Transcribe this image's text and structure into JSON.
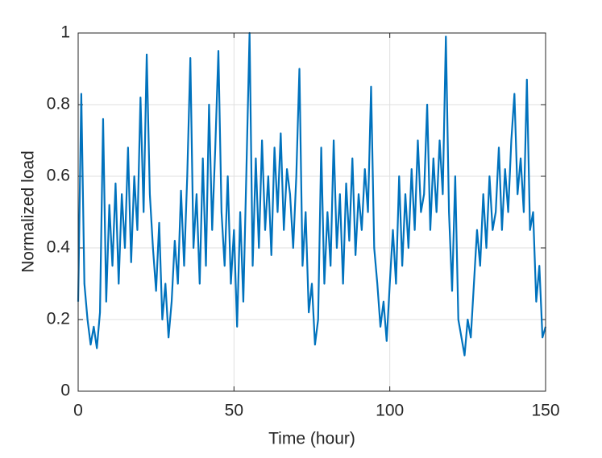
{
  "chart_data": {
    "type": "line",
    "x_label": "Time (hour)",
    "y_label": "Normalized load",
    "x": [
      0,
      1,
      2,
      3,
      4,
      5,
      6,
      7,
      8,
      9,
      10,
      11,
      12,
      13,
      14,
      15,
      16,
      17,
      18,
      19,
      20,
      21,
      22,
      23,
      24,
      25,
      26,
      27,
      28,
      29,
      30,
      31,
      32,
      33,
      34,
      35,
      36,
      37,
      38,
      39,
      40,
      41,
      42,
      43,
      44,
      45,
      46,
      47,
      48,
      49,
      50,
      51,
      52,
      53,
      54,
      55,
      56,
      57,
      58,
      59,
      60,
      61,
      62,
      63,
      64,
      65,
      66,
      67,
      68,
      69,
      70,
      71,
      72,
      73,
      74,
      75,
      76,
      77,
      78,
      79,
      80,
      81,
      82,
      83,
      84,
      85,
      86,
      87,
      88,
      89,
      90,
      91,
      92,
      93,
      94,
      95,
      96,
      97,
      98,
      99,
      100,
      101,
      102,
      103,
      104,
      105,
      106,
      107,
      108,
      109,
      110,
      111,
      112,
      113,
      114,
      115,
      116,
      117,
      118,
      119,
      120,
      121,
      122,
      123,
      124,
      125,
      126,
      127,
      128,
      129,
      130,
      131,
      132,
      133,
      134,
      135,
      136,
      137,
      138,
      139,
      140,
      141,
      142,
      143,
      144,
      145,
      146,
      147,
      148,
      149,
      150
    ],
    "series": [
      {
        "name": "Normalized load",
        "color": "#0072bd",
        "values": [
          0.25,
          0.83,
          0.3,
          0.2,
          0.13,
          0.18,
          0.12,
          0.22,
          0.76,
          0.25,
          0.52,
          0.35,
          0.58,
          0.3,
          0.55,
          0.4,
          0.68,
          0.36,
          0.6,
          0.45,
          0.82,
          0.5,
          0.94,
          0.55,
          0.4,
          0.28,
          0.47,
          0.2,
          0.3,
          0.15,
          0.25,
          0.42,
          0.3,
          0.56,
          0.35,
          0.6,
          0.93,
          0.4,
          0.55,
          0.3,
          0.65,
          0.35,
          0.8,
          0.45,
          0.68,
          0.95,
          0.5,
          0.35,
          0.6,
          0.3,
          0.45,
          0.18,
          0.5,
          0.25,
          0.62,
          1.0,
          0.35,
          0.65,
          0.4,
          0.7,
          0.45,
          0.6,
          0.38,
          0.68,
          0.5,
          0.72,
          0.45,
          0.62,
          0.55,
          0.4,
          0.6,
          0.9,
          0.35,
          0.5,
          0.22,
          0.3,
          0.13,
          0.2,
          0.68,
          0.3,
          0.5,
          0.35,
          0.7,
          0.4,
          0.55,
          0.3,
          0.58,
          0.42,
          0.65,
          0.38,
          0.55,
          0.45,
          0.62,
          0.5,
          0.85,
          0.4,
          0.3,
          0.18,
          0.25,
          0.14,
          0.3,
          0.45,
          0.3,
          0.6,
          0.35,
          0.55,
          0.4,
          0.62,
          0.45,
          0.7,
          0.5,
          0.55,
          0.8,
          0.45,
          0.65,
          0.5,
          0.7,
          0.55,
          0.99,
          0.5,
          0.28,
          0.6,
          0.2,
          0.15,
          0.1,
          0.2,
          0.15,
          0.3,
          0.45,
          0.35,
          0.55,
          0.4,
          0.6,
          0.45,
          0.5,
          0.68,
          0.45,
          0.62,
          0.5,
          0.7,
          0.83,
          0.55,
          0.65,
          0.5,
          0.87,
          0.45,
          0.5,
          0.25,
          0.35,
          0.15,
          0.18
        ]
      }
    ],
    "xlim": [
      0,
      150
    ],
    "xticks": [
      0,
      50,
      100,
      150
    ],
    "ylim": [
      0,
      1
    ],
    "yticks": [
      0,
      0.2,
      0.4,
      0.6,
      0.8,
      1
    ],
    "grid": true
  }
}
